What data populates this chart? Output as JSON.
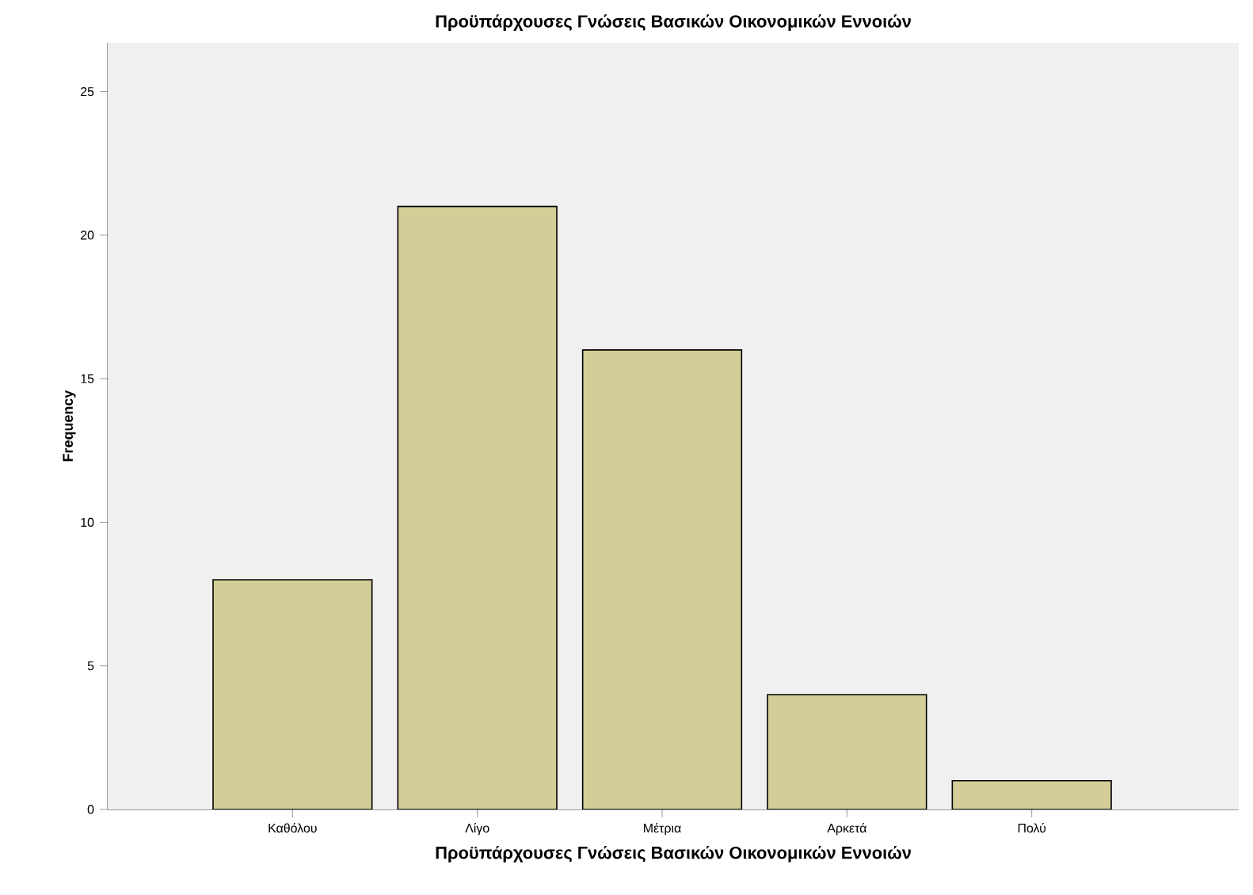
{
  "chart_data": {
    "type": "bar",
    "title": "Προϋπάρχουσες Γνώσεις Βασικών Οικονομικών Εννοιών",
    "xlabel": "Προϋπάρχουσες Γνώσεις Βασικών Οικονομικών Εννοιών",
    "ylabel": "Frequency",
    "categories": [
      "Καθόλου",
      "Λίγο",
      "Μέτρια",
      "Αρκετά",
      "Πολύ"
    ],
    "values": [
      8,
      21,
      16,
      4,
      1
    ],
    "color": "#d3ce97",
    "ylim": [
      0,
      26.7
    ],
    "yticks": [
      0,
      5,
      10,
      15,
      20,
      25
    ],
    "grid": false
  }
}
